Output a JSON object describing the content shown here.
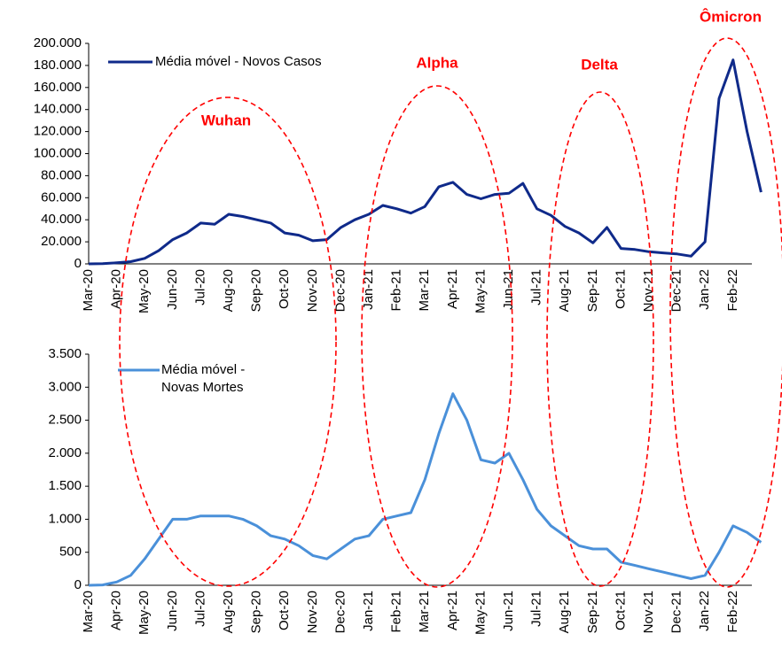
{
  "chart_data": [
    {
      "type": "line",
      "categories": [
        "Mar-20",
        null,
        "Apr-20",
        null,
        "May-20",
        null,
        "Jun-20",
        null,
        "Jul-20",
        null,
        "Aug-20",
        null,
        "Sep-20",
        null,
        "Oct-20",
        null,
        "Nov-20",
        null,
        "Dec-20",
        null,
        "Jan-21",
        null,
        "Feb-21",
        null,
        "Mar-21",
        null,
        "Apr-21",
        null,
        "May-21",
        null,
        "Jun-21",
        null,
        "Jul-21",
        null,
        "Aug-21",
        null,
        "Sep-21",
        null,
        "Oct-21",
        null,
        "Nov-21",
        null,
        "Dec-21",
        null,
        "Jan-22",
        null,
        "Feb-22",
        null,
        null
      ],
      "series": [
        {
          "name": "Média móvel - Novos Casos",
          "color": "#0f2a8a",
          "values": [
            0,
            200,
            1000,
            2000,
            5000,
            12000,
            22000,
            28000,
            37000,
            36000,
            45000,
            43000,
            40000,
            37000,
            28000,
            26000,
            21000,
            22000,
            33000,
            40000,
            45000,
            53000,
            50000,
            46000,
            52000,
            70000,
            74000,
            63000,
            59000,
            63000,
            64000,
            73000,
            50000,
            44000,
            34000,
            28000,
            19000,
            33000,
            14000,
            13000,
            11000,
            10000,
            9000,
            7000,
            20000,
            150000,
            185000,
            120000,
            65000
          ]
        }
      ],
      "ylim": [
        0,
        200000
      ],
      "yticks": [
        0,
        {
          "value": 20000,
          "label": "20.000"
        },
        {
          "value": 40000,
          "label": "40.000"
        },
        {
          "value": 60000,
          "label": "60.000"
        },
        {
          "value": 80000,
          "label": "80.000"
        },
        {
          "value": 100000,
          "label": "100.000"
        },
        {
          "value": 120000,
          "label": "120.000"
        },
        {
          "value": 140000,
          "label": "140.000"
        },
        {
          "value": 160000,
          "label": "160.000"
        },
        {
          "value": 180000,
          "label": "180.000"
        },
        {
          "value": 200000,
          "label": "200.000"
        }
      ],
      "annotations": [
        "Wuhan",
        "Alpha",
        "Delta",
        "Ômicron"
      ]
    },
    {
      "type": "line",
      "categories": [
        "Mar-20",
        null,
        "Apr-20",
        null,
        "May-20",
        null,
        "Jun-20",
        null,
        "Jul-20",
        null,
        "Aug-20",
        null,
        "Sep-20",
        null,
        "Oct-20",
        null,
        "Nov-20",
        null,
        "Dec-20",
        null,
        "Jan-21",
        null,
        "Feb-21",
        null,
        "Mar-21",
        null,
        "Apr-21",
        null,
        "May-21",
        null,
        "Jun-21",
        null,
        "Jul-21",
        null,
        "Aug-21",
        null,
        "Sep-21",
        null,
        "Oct-21",
        null,
        "Nov-21",
        null,
        "Dec-21",
        null,
        "Jan-22",
        null,
        "Feb-22",
        null,
        null
      ],
      "series": [
        {
          "name": "Média móvel - Novas Mortes",
          "color": "#4a90d9",
          "values": [
            0,
            5,
            50,
            150,
            400,
            700,
            1000,
            1000,
            1050,
            1050,
            1050,
            1000,
            900,
            750,
            700,
            600,
            450,
            400,
            550,
            700,
            750,
            1000,
            1050,
            1100,
            1600,
            2300,
            2900,
            2500,
            1900,
            1850,
            2000,
            1600,
            1150,
            900,
            750,
            600,
            550,
            550,
            350,
            300,
            250,
            200,
            150,
            100,
            150,
            500,
            900,
            800,
            650
          ]
        }
      ],
      "ylim": [
        0,
        3500
      ],
      "yticks": [
        0,
        {
          "value": 500,
          "label": "500"
        },
        {
          "value": 1000,
          "label": "1.000"
        },
        {
          "value": 1500,
          "label": "1.500"
        },
        {
          "value": 2000,
          "label": "2.000"
        },
        {
          "value": 2500,
          "label": "2.500"
        },
        {
          "value": 3000,
          "label": "3.000"
        },
        {
          "value": 3500,
          "label": "3.500"
        }
      ]
    }
  ]
}
